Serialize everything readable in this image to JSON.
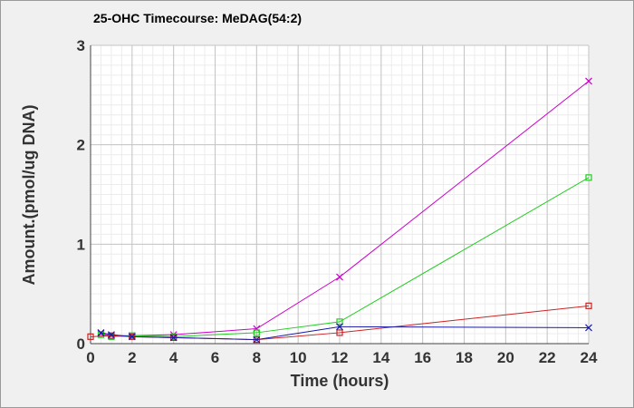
{
  "chart_data": {
    "type": "line",
    "title": "25-OHC Timecourse: MeDAG(54:2)",
    "xlabel": "Time (hours)",
    "ylabel": "Amount.(pmol/ug DNA)",
    "xlim": [
      0,
      24
    ],
    "ylim": [
      0,
      3
    ],
    "xticks": [
      0,
      2,
      4,
      6,
      8,
      10,
      12,
      14,
      16,
      18,
      20,
      22,
      24
    ],
    "yticks": [
      0,
      1,
      2,
      3
    ],
    "grid": true,
    "legend": "none",
    "series": [
      {
        "color": "#cc00cc",
        "marker": "x",
        "points": [
          [
            0.5,
            0.1
          ],
          [
            1,
            0.08
          ],
          [
            2,
            0.08
          ],
          [
            4,
            0.09
          ],
          [
            8,
            0.15
          ],
          [
            12,
            0.67
          ],
          [
            24,
            2.64
          ]
        ]
      },
      {
        "color": "#22cc22",
        "marker": "square",
        "points": [
          [
            0.5,
            0.09
          ],
          [
            1,
            0.07
          ],
          [
            2,
            0.08
          ],
          [
            4,
            0.07
          ],
          [
            8,
            0.11
          ],
          [
            12,
            0.22
          ],
          [
            24,
            1.67
          ]
        ]
      },
      {
        "color": "#cc2222",
        "marker": "square",
        "points": [
          [
            0,
            0.07
          ],
          [
            1,
            0.08
          ],
          [
            2,
            0.07
          ],
          [
            4,
            0.06
          ],
          [
            8,
            0.04
          ],
          [
            12,
            0.11
          ],
          [
            24,
            0.38
          ]
        ]
      },
      {
        "color": "#1a1aaa",
        "marker": "x",
        "points": [
          [
            0.5,
            0.11
          ],
          [
            1,
            0.09
          ],
          [
            2,
            0.07
          ],
          [
            4,
            0.06
          ],
          [
            8,
            0.04
          ],
          [
            12,
            0.17
          ],
          [
            24,
            0.16
          ]
        ]
      }
    ]
  }
}
